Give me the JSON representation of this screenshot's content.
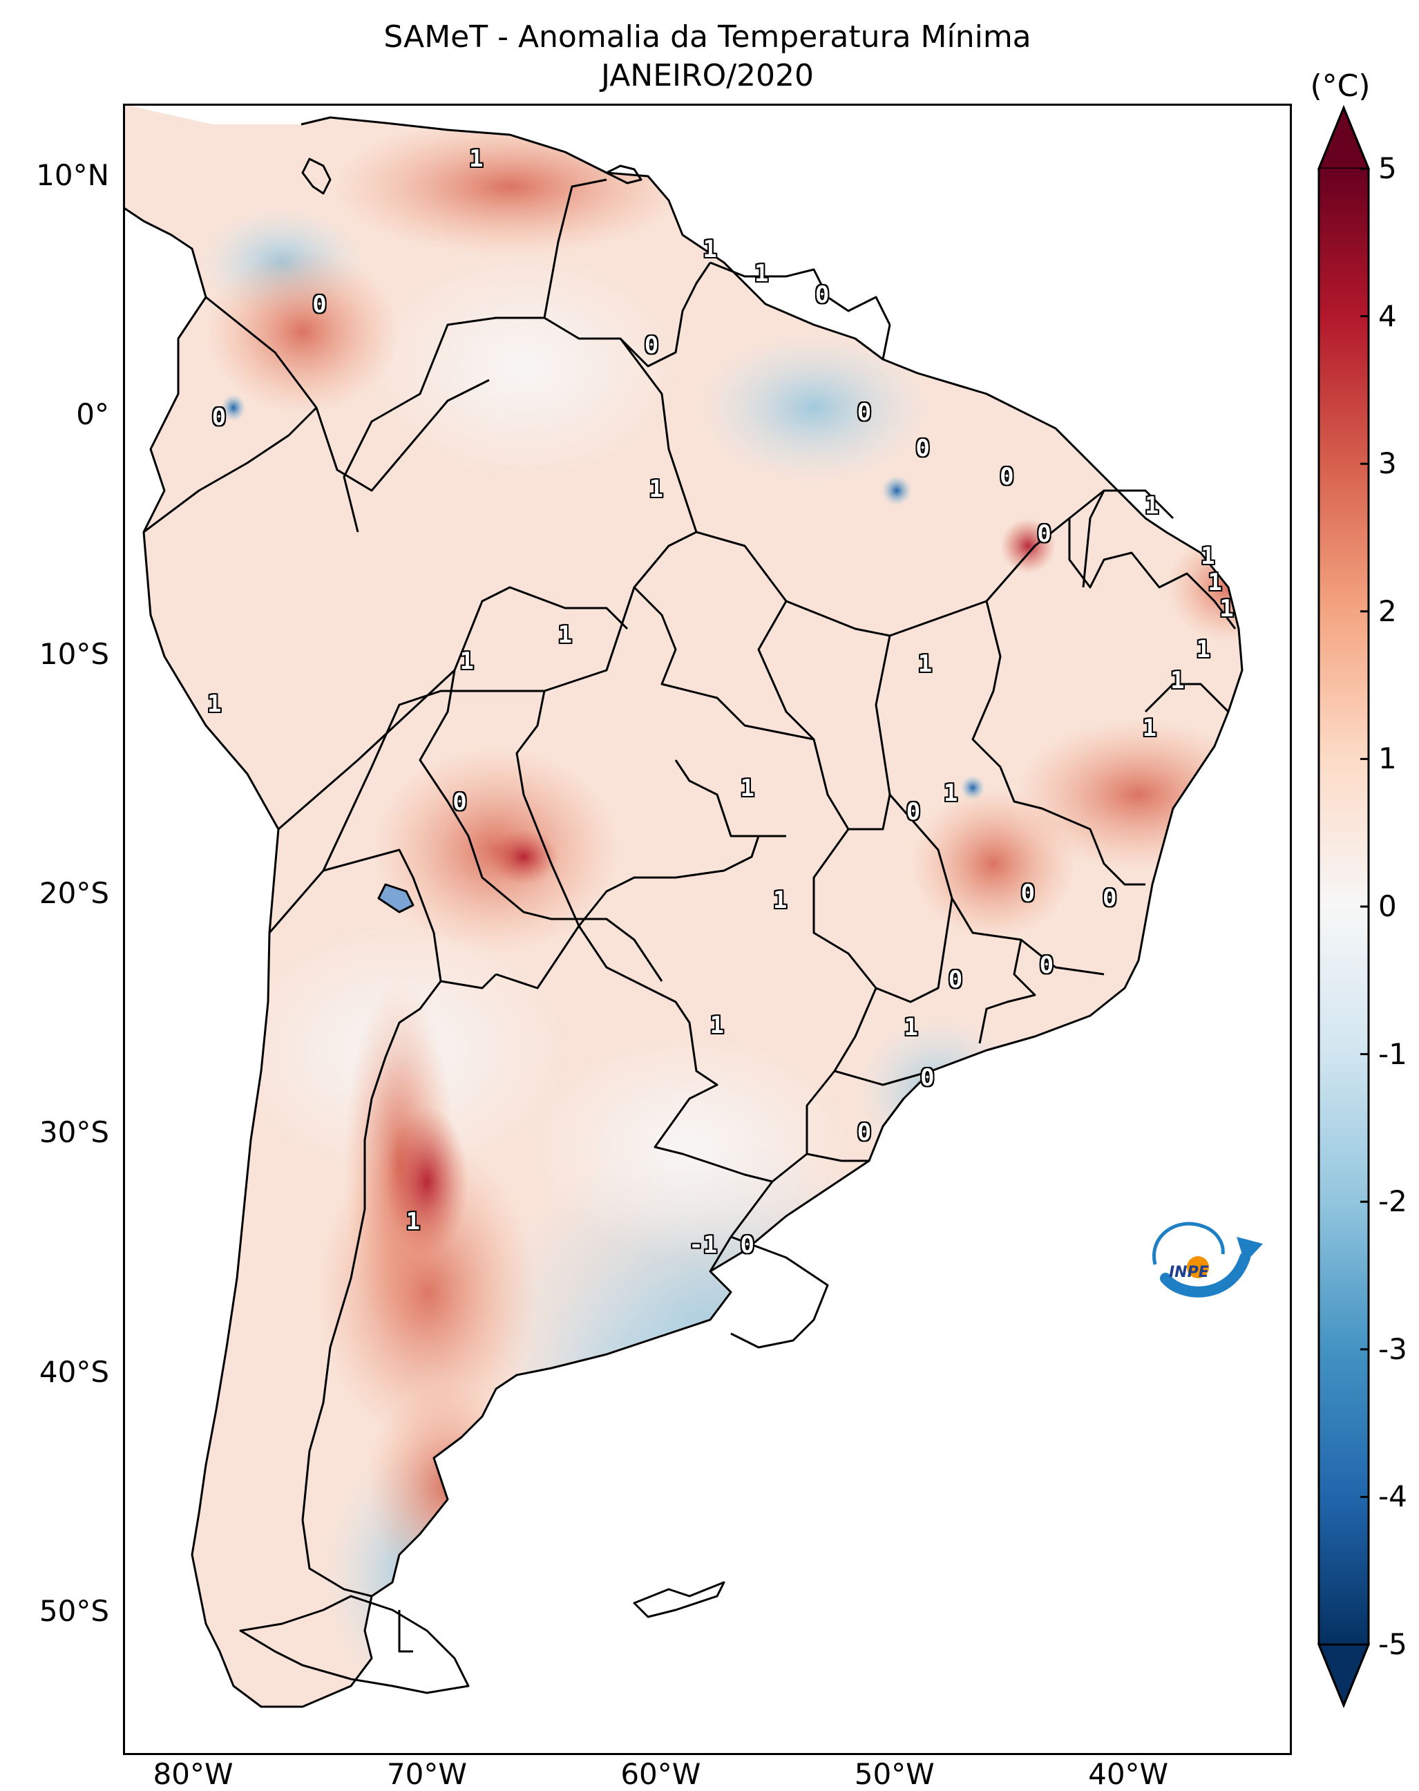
{
  "title": {
    "line1": "SAMeT - Anomalia da Temperatura Mínima",
    "line2": "JANEIRO/2020"
  },
  "axes": {
    "y_ticks": [
      {
        "label": "10°N",
        "lat": 10
      },
      {
        "label": "0°",
        "lat": 0
      },
      {
        "label": "10°S",
        "lat": -10
      },
      {
        "label": "20°S",
        "lat": -20
      },
      {
        "label": "30°S",
        "lat": -30
      },
      {
        "label": "40°S",
        "lat": -40
      },
      {
        "label": "50°S",
        "lat": -50
      }
    ],
    "x_ticks": [
      {
        "label": "80°W",
        "lon": -80
      },
      {
        "label": "70°W",
        "lon": -70
      },
      {
        "label": "60°W",
        "lon": -60
      },
      {
        "label": "50°W",
        "lon": -50
      },
      {
        "label": "40°W",
        "lon": -40
      }
    ],
    "lon_range": [
      -83,
      -33
    ],
    "lat_range": [
      -56,
      13
    ]
  },
  "colorbar": {
    "unit": "(°C)",
    "min": -5,
    "max": 5,
    "ticks": [
      "5",
      "4",
      "3",
      "2",
      "1",
      "0",
      "-1",
      "-2",
      "-3",
      "-4",
      "-5"
    ],
    "colors": [
      "#053061",
      "#2166ac",
      "#4393c3",
      "#92c5de",
      "#d1e5f0",
      "#f7f7f7",
      "#fddbc7",
      "#f4a582",
      "#d6604d",
      "#b2182b",
      "#67001f"
    ]
  },
  "contour_labels": [
    {
      "text": "1",
      "lon": -67.9,
      "lat": 10.7
    },
    {
      "text": "1",
      "lon": -57.9,
      "lat": 6.9
    },
    {
      "text": "1",
      "lon": -55.7,
      "lat": 5.9
    },
    {
      "text": "0",
      "lon": -53.1,
      "lat": 5.0
    },
    {
      "text": "0",
      "lon": -74.6,
      "lat": 4.6
    },
    {
      "text": "0",
      "lon": -60.4,
      "lat": 2.9
    },
    {
      "text": "0",
      "lon": -51.3,
      "lat": 0.1
    },
    {
      "text": "0",
      "lon": -48.8,
      "lat": -1.4
    },
    {
      "text": "0",
      "lon": -45.2,
      "lat": -2.6
    },
    {
      "text": "1",
      "lon": -39.0,
      "lat": -3.8
    },
    {
      "text": "0",
      "lon": -78.9,
      "lat": -0.1
    },
    {
      "text": "1",
      "lon": -60.2,
      "lat": -3.1
    },
    {
      "text": "0",
      "lon": -43.6,
      "lat": -5.0
    },
    {
      "text": "1",
      "lon": -36.6,
      "lat": -5.9
    },
    {
      "text": "1",
      "lon": -36.3,
      "lat": -7.0
    },
    {
      "text": "1",
      "lon": -35.8,
      "lat": -8.1
    },
    {
      "text": "1",
      "lon": -36.8,
      "lat": -9.8
    },
    {
      "text": "1",
      "lon": -37.9,
      "lat": -11.1
    },
    {
      "text": "1",
      "lon": -64.1,
      "lat": -9.2
    },
    {
      "text": "1",
      "lon": -68.3,
      "lat": -10.3
    },
    {
      "text": "1",
      "lon": -48.7,
      "lat": -10.4
    },
    {
      "text": "1",
      "lon": -79.1,
      "lat": -12.1
    },
    {
      "text": "1",
      "lon": -39.1,
      "lat": -13.1
    },
    {
      "text": "1",
      "lon": -56.3,
      "lat": -15.6
    },
    {
      "text": "1",
      "lon": -47.6,
      "lat": -15.8
    },
    {
      "text": "0",
      "lon": -49.2,
      "lat": -16.6
    },
    {
      "text": "0",
      "lon": -68.6,
      "lat": -16.2
    },
    {
      "text": "1",
      "lon": -54.9,
      "lat": -20.3
    },
    {
      "text": "0",
      "lon": -44.3,
      "lat": -20.0
    },
    {
      "text": "0",
      "lon": -40.8,
      "lat": -20.2
    },
    {
      "text": "0",
      "lon": -43.5,
      "lat": -23.0
    },
    {
      "text": "0",
      "lon": -47.4,
      "lat": -23.6
    },
    {
      "text": "1",
      "lon": -57.6,
      "lat": -25.5
    },
    {
      "text": "1",
      "lon": -49.3,
      "lat": -25.6
    },
    {
      "text": "0",
      "lon": -48.6,
      "lat": -27.7
    },
    {
      "text": "0",
      "lon": -51.3,
      "lat": -30.0
    },
    {
      "text": "1",
      "lon": -70.6,
      "lat": -33.7
    },
    {
      "text": "-1",
      "lon": -58.2,
      "lat": -34.7
    },
    {
      "text": "0",
      "lon": -56.3,
      "lat": -34.7
    }
  ],
  "logo": {
    "text": "INPE"
  }
}
